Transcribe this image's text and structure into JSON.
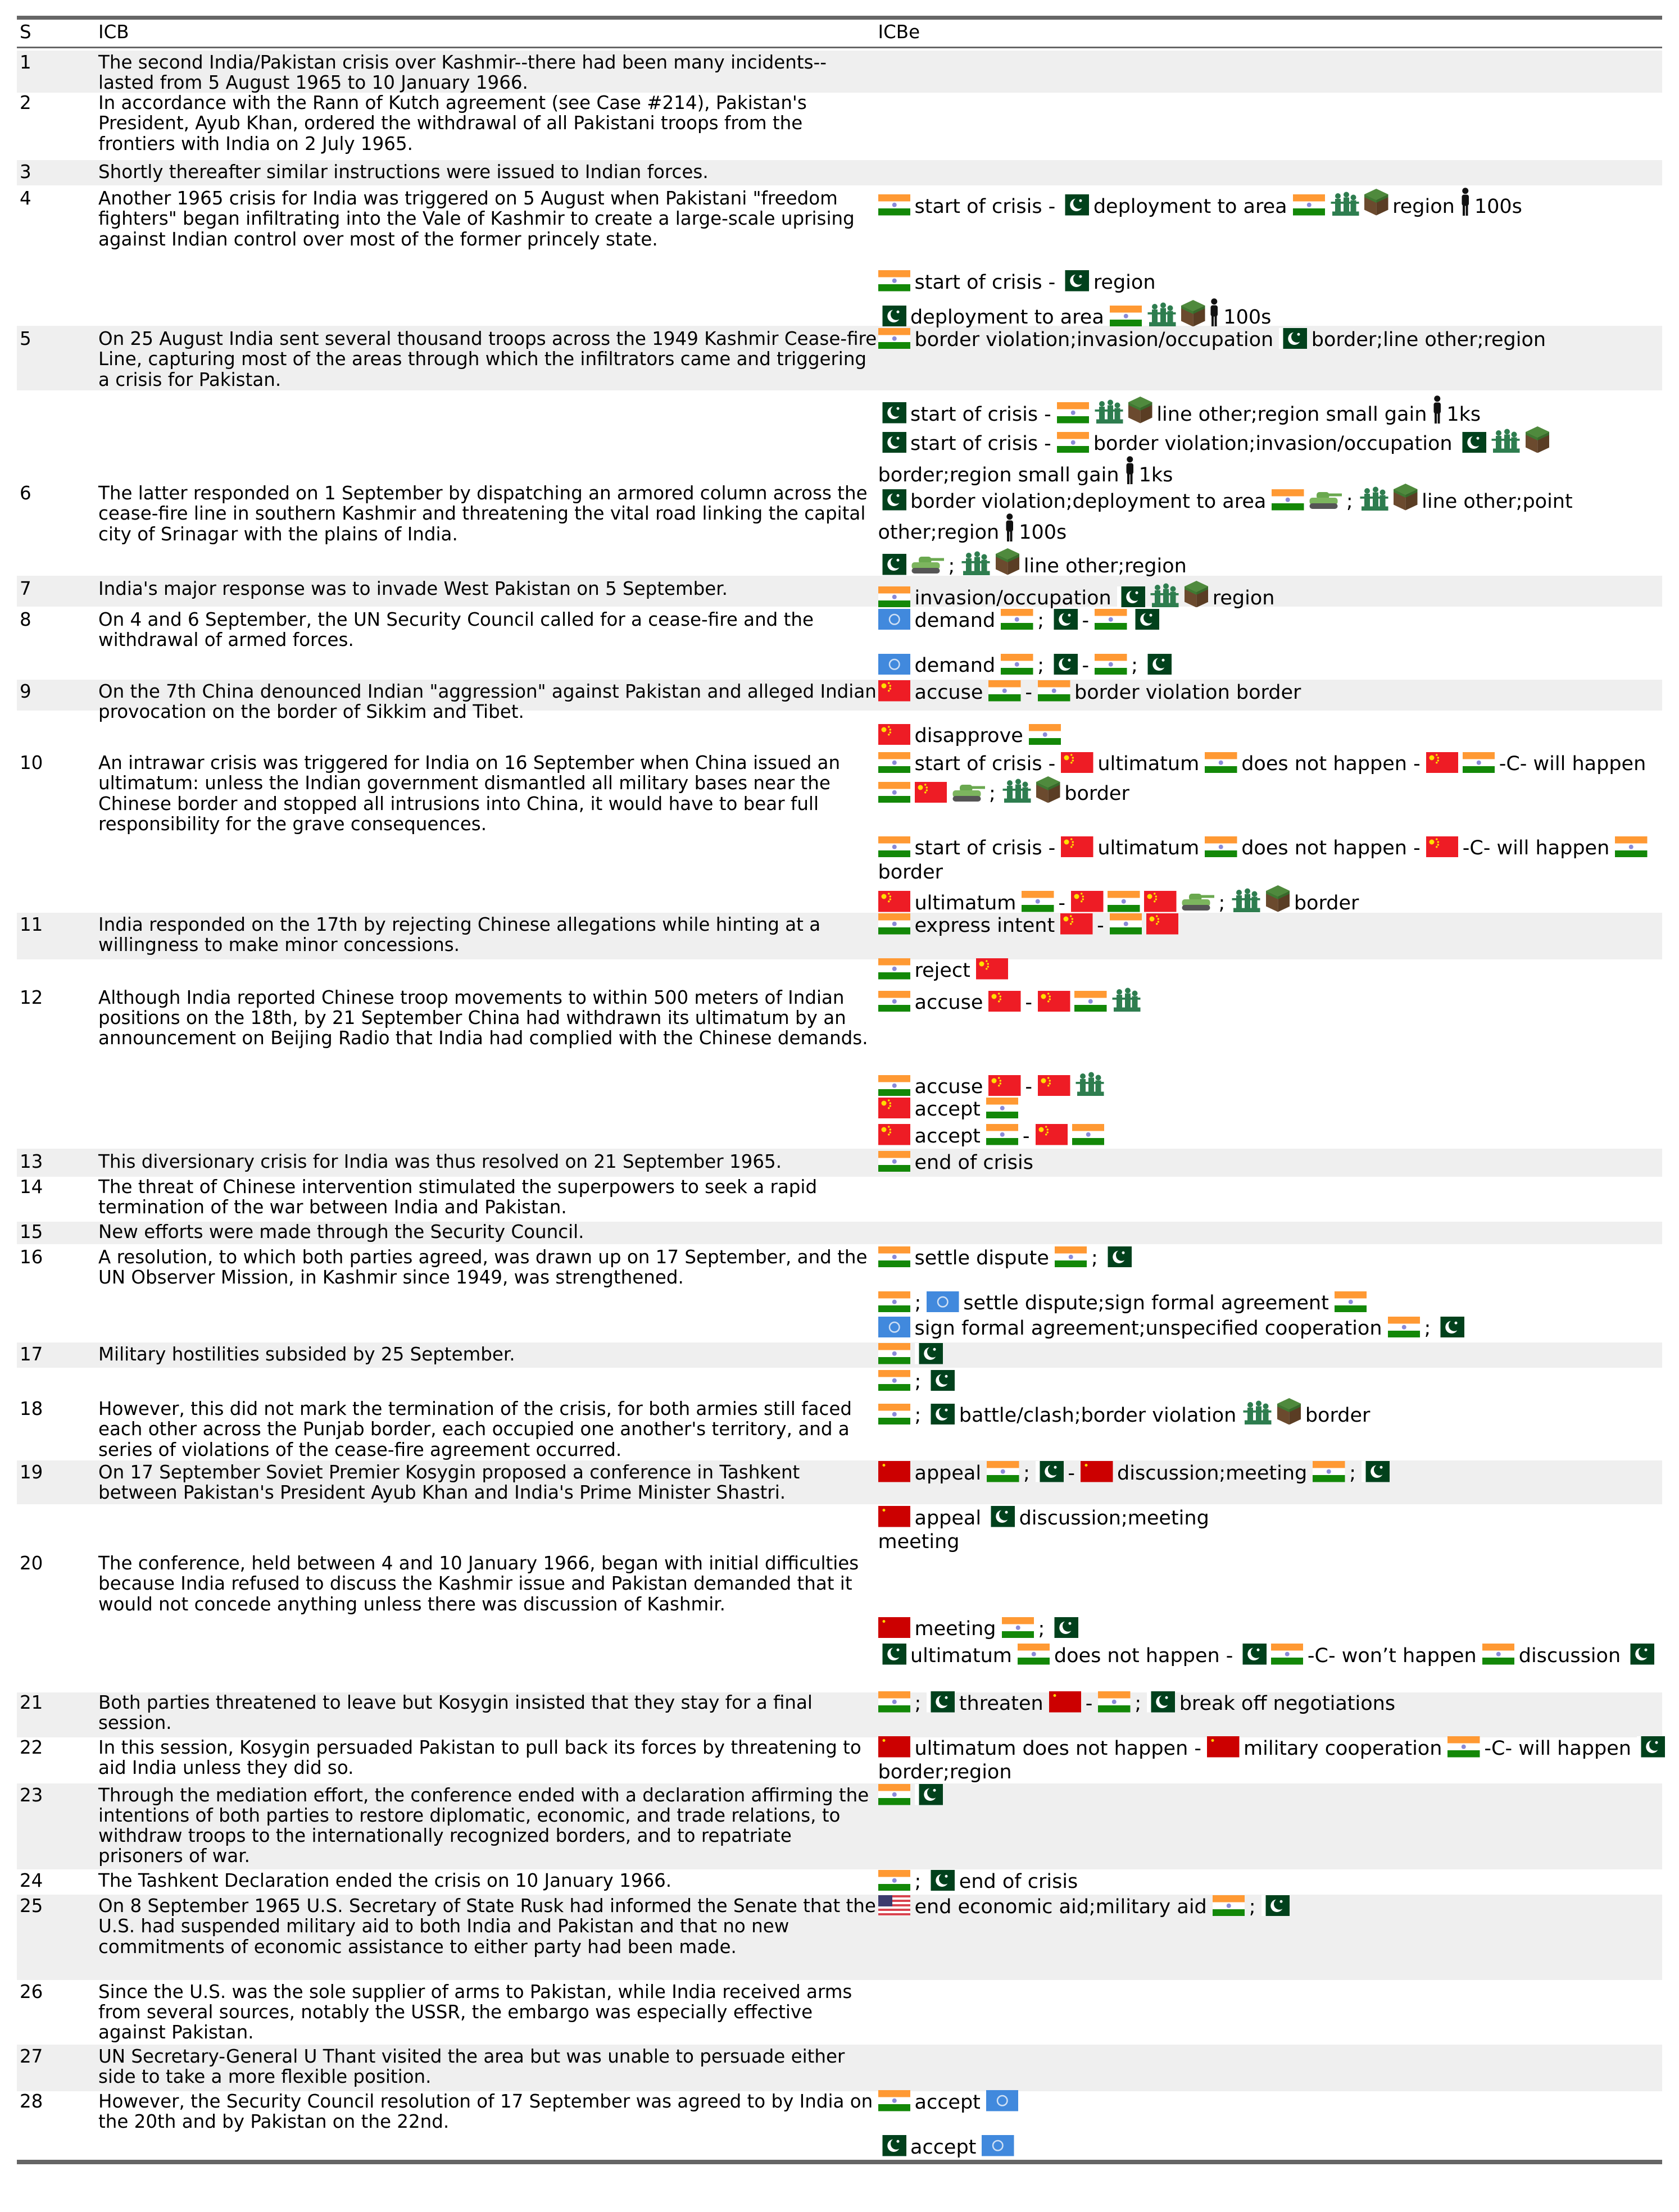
{
  "header": {
    "s": "S",
    "icb": "ICB",
    "icbe": "ICBe"
  },
  "icons": {
    "@IN": "india-flag",
    "@PK": "pakistan-flag",
    "@CN": "china-flag",
    "@SU": "soviet-union-flag",
    "@US": "usa-flag",
    "@UN": "united-nations-flag",
    "@SOL": "soldiers",
    "@LAND": "land-block",
    "@PER": "person",
    "@TANK": "tank",
    "@BR": "line-break"
  },
  "colors": {
    "row_stripe": "#efefef",
    "rule": "#666666"
  },
  "rows": [
    {
      "s": "1",
      "icb": "The second India/Pakistan crisis over Kashmir--there had been many incidents--lasted from 5 August 1965 to 10 January 1966.",
      "icbe": []
    },
    {
      "s": "2",
      "icb": "In accordance with the Rann of Kutch agreement (see Case #214), Pakistan's President, Ayub Khan, ordered the withdrawal of all Pakistani troops from the frontiers with India on 2 July 1965.",
      "icbe": []
    },
    {
      "s": "3",
      "icb": "Shortly thereafter similar instructions were issued to Indian forces.",
      "icbe": []
    },
    {
      "s": "4",
      "icb": "Another 1965 crisis for India was triggered on 5 August when Pakistani \"freedom fighters\" began infiltrating into the Vale of Kashmir to create a large-scale uprising against Indian control over most of the former princely state.",
      "icbe": [
        [
          "@IN",
          "start of crisis -",
          "@PK",
          "deployment to area",
          "@IN",
          "@SOL",
          "@LAND",
          "region",
          "@PER",
          "100s"
        ],
        [
          "@IN",
          "start of crisis -",
          "@PK",
          "region"
        ],
        [
          "@PK",
          "deployment to area",
          "@IN",
          "@SOL",
          "@LAND",
          "@PER",
          "100s"
        ]
      ]
    },
    {
      "s": "5",
      "icb": "On 25 August India sent several thousand troops across the 1949 Kashmir Cease-fire Line, capturing most of the areas through which the infiltrators came and triggering a crisis for Pakistan.",
      "icbe": [
        [
          "@IN",
          "border violation;invasion/occupation",
          "@PK",
          "border;line other;region"
        ],
        [
          "@PK",
          "start of crisis -",
          "@IN",
          "@SOL",
          "@LAND",
          "line other;region small gain",
          "@PER",
          "1ks"
        ],
        [
          "@PK",
          "start of crisis -",
          "@IN",
          "border violation;invasion/occupation",
          "@PK",
          "@SOL",
          "@LAND",
          "border;region small gain",
          "@PER",
          "1ks"
        ]
      ]
    },
    {
      "s": "6",
      "icb": "The latter responded on 1 September by dispatching an armored column across the cease-fire line in southern Kashmir and threatening the vital road linking the capital city of Srinagar with the plains of India.",
      "icbe": [
        [
          "@PK",
          "border violation;deployment to area",
          "@IN",
          "@TANK",
          ";",
          "@SOL",
          "@LAND",
          "line other;point other;region",
          "@PER",
          "100s"
        ],
        [
          "@PK",
          "@TANK",
          ";",
          "@SOL",
          "@LAND",
          "line other;region"
        ]
      ]
    },
    {
      "s": "7",
      "icb": "India's major response was to invade West Pakistan on 5 September.",
      "icbe": [
        [
          "@IN",
          "invasion/occupation",
          "@PK",
          "@SOL",
          "@LAND",
          "region"
        ]
      ]
    },
    {
      "s": "8",
      "icb": "On 4 and 6 September, the UN Security Council called for a cease-fire and the withdrawal of armed forces.",
      "icbe": [
        [
          "@UN",
          "demand",
          "@IN",
          ";",
          "@PK",
          "-",
          "@IN",
          "@PK"
        ],
        [
          "@UN",
          "demand",
          "@IN",
          ";",
          "@PK",
          "-",
          "@IN",
          ";",
          "@PK"
        ]
      ]
    },
    {
      "s": "9",
      "icb": "On the 7th China denounced Indian \"aggression\" against Pakistan and alleged Indian provocation on the border of Sikkim and Tibet.",
      "icbe": [
        [
          "@CN",
          "accuse",
          "@IN",
          "-",
          "@IN",
          "border violation border"
        ],
        [
          "@CN",
          "disapprove",
          "@IN"
        ]
      ]
    },
    {
      "s": "10",
      "icb": "An intrawar crisis was triggered for India on 16 September when China issued an ultimatum: unless the Indian government dismantled all military bases near the Chinese border and stopped all intrusions into China, it would have to bear full responsibility for the grave consequences.",
      "icbe": [
        [
          "@IN",
          "start of crisis -",
          "@CN",
          "ultimatum",
          "@IN",
          "does not happen -",
          "@CN",
          "@IN",
          "-C- will happen",
          "@IN",
          "@CN",
          "@TANK",
          ";",
          "@SOL",
          "@LAND",
          "border"
        ],
        [
          "@IN",
          "start of crisis -",
          "@CN",
          "ultimatum",
          "@IN",
          "does not happen -",
          "@CN",
          "-C- will happen",
          "@IN",
          "border"
        ],
        [
          "@CN",
          "ultimatum",
          "@IN",
          "-",
          "@CN",
          "@IN",
          "@CN",
          "@TANK",
          ";",
          "@SOL",
          "@LAND",
          "border"
        ]
      ]
    },
    {
      "s": "11",
      "icb": "India responded on the 17th by rejecting Chinese allegations while hinting at a willingness to make minor concessions.",
      "icbe": [
        [
          "@IN",
          "express intent",
          "@CN",
          "-",
          "@IN",
          "@CN"
        ]
      ]
    },
    {
      "s": "12",
      "icb": "Although India reported Chinese troop movements to within 500 meters of Indian positions on the 18th, by 21 September China had withdrawn its ultimatum by an announcement on Beijing Radio that India had complied with the Chinese demands.",
      "icbe": [
        [
          "@IN",
          "reject",
          "@CN"
        ],
        [
          "@IN",
          "accuse",
          "@CN",
          "-",
          "@CN",
          "@IN",
          "@SOL"
        ],
        [
          "@IN",
          "accuse",
          "@CN",
          "-",
          "@CN",
          "@SOL"
        ],
        [
          "@CN",
          "accept",
          "@IN"
        ],
        [
          "@CN",
          "accept",
          "@IN",
          "-",
          "@CN",
          "@IN"
        ]
      ]
    },
    {
      "s": "13",
      "icb": "This diversionary crisis for India was thus resolved on 21 September 1965.",
      "icbe": [
        [
          "@IN",
          "end of crisis"
        ]
      ]
    },
    {
      "s": "14",
      "icb": "The threat of Chinese intervention stimulated the superpowers to seek a rapid termination of the war between India and Pakistan.",
      "icbe": []
    },
    {
      "s": "15",
      "icb": "New efforts were made through the Security Council.",
      "icbe": []
    },
    {
      "s": "16",
      "icb": "A resolution, to which both parties agreed, was drawn up on 17 September, and the UN Observer Mission, in Kashmir since 1949, was strengthened.",
      "icbe": [
        [
          "@IN",
          "settle dispute",
          "@IN",
          ";",
          "@PK"
        ],
        [
          "@IN",
          ";",
          "@UN",
          "settle dispute;sign formal agreement",
          "@IN"
        ],
        [
          "@UN",
          "sign formal agreement;unspecified cooperation",
          "@IN",
          ";",
          "@PK"
        ]
      ]
    },
    {
      "s": "17",
      "icb": "Military hostilities subsided by 25 September.",
      "icbe": [
        [
          "@IN",
          "@PK"
        ]
      ]
    },
    {
      "s": "18",
      "icb": "However, this did not mark the termination of the crisis, for both armies still faced each other across the Punjab border, each occupied one another's territory, and a series of violations of the cease-fire agreement occurred.",
      "icbe": [
        [
          "@IN",
          ";",
          "@PK"
        ],
        [
          "@IN",
          ";",
          "@PK",
          "battle/clash;border violation",
          "@SOL",
          "@LAND",
          "border"
        ]
      ]
    },
    {
      "s": "19",
      "icb": "On 17 September Soviet Premier Kosygin proposed a conference in Tashkent between Pakistan's President Ayub Khan and India's Prime Minister Shastri.",
      "icbe": [
        [
          "@SU",
          "appeal",
          "@IN",
          ";",
          "@PK",
          "-",
          "@SU",
          "discussion;meeting",
          "@IN",
          ";",
          "@PK"
        ]
      ]
    },
    {
      "s": "20",
      "icb": "The conference, held between 4 and 10 January 1966, began with initial difficulties because India refused to discuss the Kashmir issue and Pakistan demanded that it would not concede anything unless there was discussion of Kashmir.",
      "icbe": [
        [
          "@SU",
          "appeal",
          "@PK",
          "discussion;meeting",
          "@BR",
          "meeting"
        ],
        [
          "@SU",
          "meeting",
          "@IN",
          ";",
          "@PK"
        ],
        [
          "@PK",
          "ultimatum",
          "@IN",
          "does not happen -",
          "@PK",
          "@IN",
          "-C- won’t happen",
          "@IN",
          "discussion",
          "@PK"
        ]
      ]
    },
    {
      "s": "21",
      "icb": "Both parties threatened to leave but Kosygin insisted that they stay for a final session.",
      "icbe": [
        [
          "@IN",
          ";",
          "@PK",
          "threaten",
          "@SU",
          "-",
          "@IN",
          ";",
          "@PK",
          "break off negotiations"
        ]
      ]
    },
    {
      "s": "22",
      "icb": "In this session, Kosygin persuaded Pakistan to pull back its forces by threatening to aid India unless they did so.",
      "icbe": [
        [
          "@SU",
          "ultimatum does not happen -",
          "@SU",
          "military cooperation",
          "@IN",
          "-C- will happen",
          "@PK",
          "border;region"
        ]
      ]
    },
    {
      "s": "23",
      "icb": "Through the mediation effort, the conference ended with a declaration affirming the intentions of both parties to restore diplomatic, economic, and trade relations, to withdraw troops to the internationally recognized borders, and to repatriate prisoners of war.",
      "icbe": [
        [
          "@IN",
          "@PK"
        ]
      ]
    },
    {
      "s": "24",
      "icb": "The Tashkent Declaration ended the crisis on 10 January 1966.",
      "icbe": [
        [
          "@IN",
          ";",
          "@PK",
          "end of crisis"
        ]
      ]
    },
    {
      "s": "25",
      "icb": "On 8 September 1965 U.S. Secretary of State Rusk had informed the Senate that the U.S. had suspended military aid to both India and Pakistan and that no new commitments of economic assistance to either party had been made.",
      "icbe": [
        [
          "@US",
          "end economic aid;military aid",
          "@IN",
          ";",
          "@PK"
        ]
      ]
    },
    {
      "s": "26",
      "icb": "Since the U.S. was the sole supplier of arms to Pakistan, while India received arms from several sources, notably the USSR, the embargo was especially effective against Pakistan.",
      "icbe": []
    },
    {
      "s": "27",
      "icb": "UN Secretary-General U Thant visited the area but was unable to persuade either side to take a more flexible position.",
      "icbe": []
    },
    {
      "s": "28",
      "icb": "However, the Security Council resolution of 17 September was agreed to by India on the 20th and by Pakistan on the 22nd.",
      "icbe": [
        [
          "@IN",
          "accept",
          "@UN"
        ],
        [
          "@PK",
          "accept",
          "@UN"
        ]
      ]
    }
  ]
}
